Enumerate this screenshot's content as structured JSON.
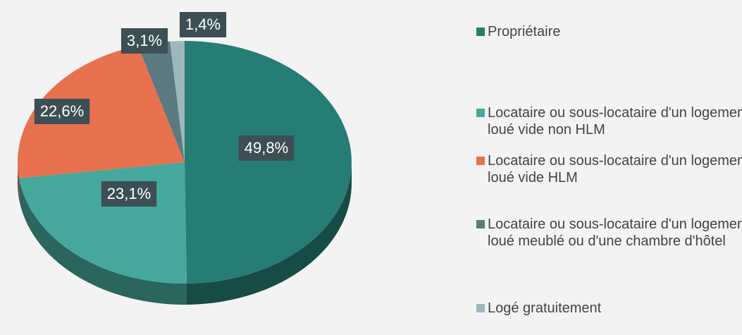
{
  "chart_data": {
    "type": "pie",
    "categories": [
      "Propriétaire",
      "Locataire ou sous-locataire d'un logement loué vide non HLM",
      "Locataire ou sous-locataire d'un logement loué vide HLM",
      "Locataire ou sous-locataire d'un logement loué meublé ou d'une chambre d'hôtel",
      "Logé gratuitement"
    ],
    "values": [
      49.8,
      23.1,
      22.6,
      3.1,
      1.4
    ],
    "value_labels": [
      "49,8%",
      "23,1%",
      "22,6%",
      "3,1%",
      "1,4%"
    ],
    "colors": [
      "#267d73",
      "#46a89c",
      "#e8714f",
      "#5a7a80",
      "#9fb6bd"
    ],
    "legend": "right"
  }
}
